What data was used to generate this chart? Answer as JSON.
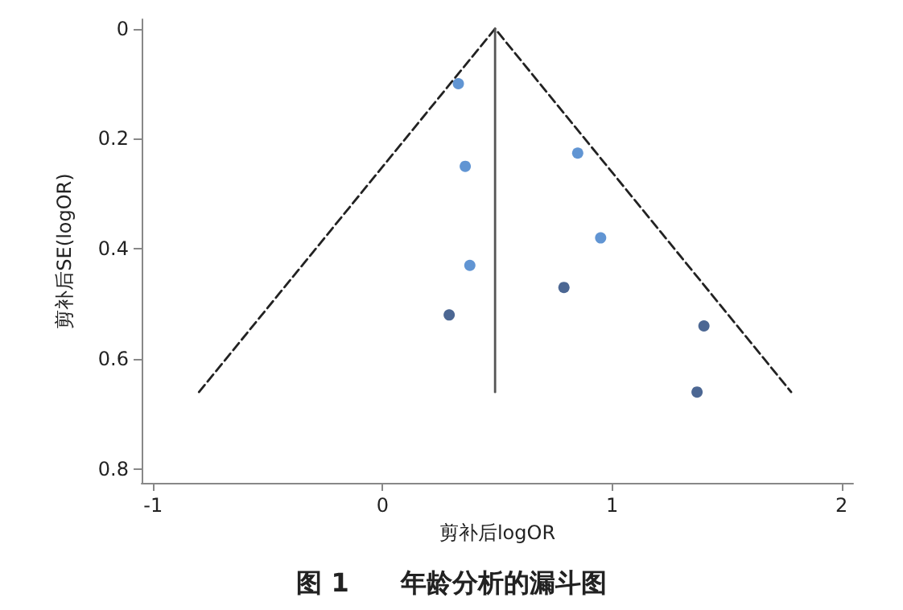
{
  "chart_data": {
    "type": "scatter",
    "title": "图 1　　年龄分析的漏斗图",
    "xlabel": "剪补后logOR",
    "ylabel": "剪补后SE(logOR)",
    "xlim": [
      -1.05,
      2.05
    ],
    "xticks": [
      -1,
      0,
      1,
      2
    ],
    "ylim": [
      0.825,
      -0.017
    ],
    "yticks": [
      0,
      0.2,
      0.4,
      0.6,
      0.8
    ],
    "grid": false,
    "marker": "circle",
    "series": [
      {
        "type": "line",
        "line_style": "dashed",
        "marker": "none",
        "color": "#222222",
        "x": [
          -0.8,
          0.49,
          1.78
        ],
        "values": [
          0.66,
          0,
          0.66
        ]
      },
      {
        "type": "line",
        "line_style": "solid",
        "marker": "none",
        "color": "#555555",
        "x": [
          0.49,
          0.49
        ],
        "values": [
          0,
          0.66
        ]
      },
      {
        "color": "#3a7bc8",
        "x": [
          0.33,
          0.36,
          0.38,
          0.85,
          0.95
        ],
        "values": [
          0.1,
          0.25,
          0.43,
          0.226,
          0.38
        ]
      },
      {
        "color": "#1f4178",
        "x": [
          0.29,
          0.79,
          1.4,
          1.37
        ],
        "values": [
          0.52,
          0.47,
          0.54,
          0.66
        ]
      }
    ]
  }
}
